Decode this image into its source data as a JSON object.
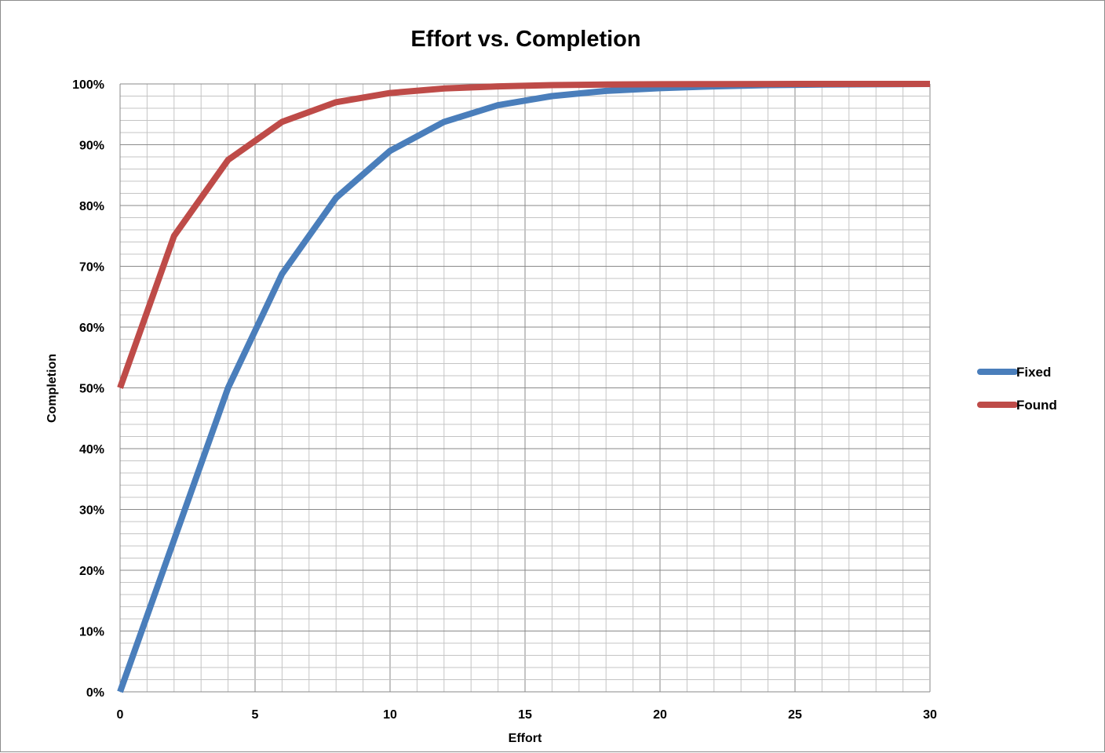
{
  "chart_data": {
    "type": "line",
    "title": "Effort vs. Completion",
    "xlabel": "Effort",
    "ylabel": "Completion",
    "xlim": [
      0,
      30
    ],
    "ylim": [
      0,
      1
    ],
    "x_ticks": [
      0,
      5,
      10,
      15,
      20,
      25,
      30
    ],
    "x_tick_labels": [
      "0",
      "5",
      "10",
      "15",
      "20",
      "25",
      "30"
    ],
    "y_ticks": [
      0,
      0.1,
      0.2,
      0.3,
      0.4,
      0.5,
      0.6,
      0.7,
      0.8,
      0.9,
      1.0
    ],
    "y_tick_labels": [
      "0%",
      "10%",
      "20%",
      "30%",
      "40%",
      "50%",
      "60%",
      "70%",
      "80%",
      "90%",
      "100%"
    ],
    "grid": true,
    "legend_position": "right",
    "series": [
      {
        "name": "Fixed",
        "color": "#4a7ebb",
        "x": [
          0,
          2,
          4,
          6,
          8,
          10,
          12,
          14,
          16,
          18,
          20,
          22,
          24,
          26,
          28,
          30
        ],
        "values": [
          0,
          0.25,
          0.5,
          0.6875,
          0.8125,
          0.89,
          0.9375,
          0.965,
          0.98,
          0.9885,
          0.993,
          0.996,
          0.998,
          0.999,
          0.9995,
          1.0
        ]
      },
      {
        "name": "Found",
        "color": "#be4b48",
        "x": [
          0,
          2,
          4,
          6,
          8,
          10,
          12,
          14,
          16,
          18,
          20,
          22,
          24,
          26,
          28,
          30
        ],
        "values": [
          0.5,
          0.75,
          0.875,
          0.9375,
          0.97,
          0.985,
          0.9925,
          0.996,
          0.998,
          0.999,
          0.9995,
          0.9998,
          0.9999,
          1.0,
          1.0,
          1.0
        ]
      }
    ]
  }
}
